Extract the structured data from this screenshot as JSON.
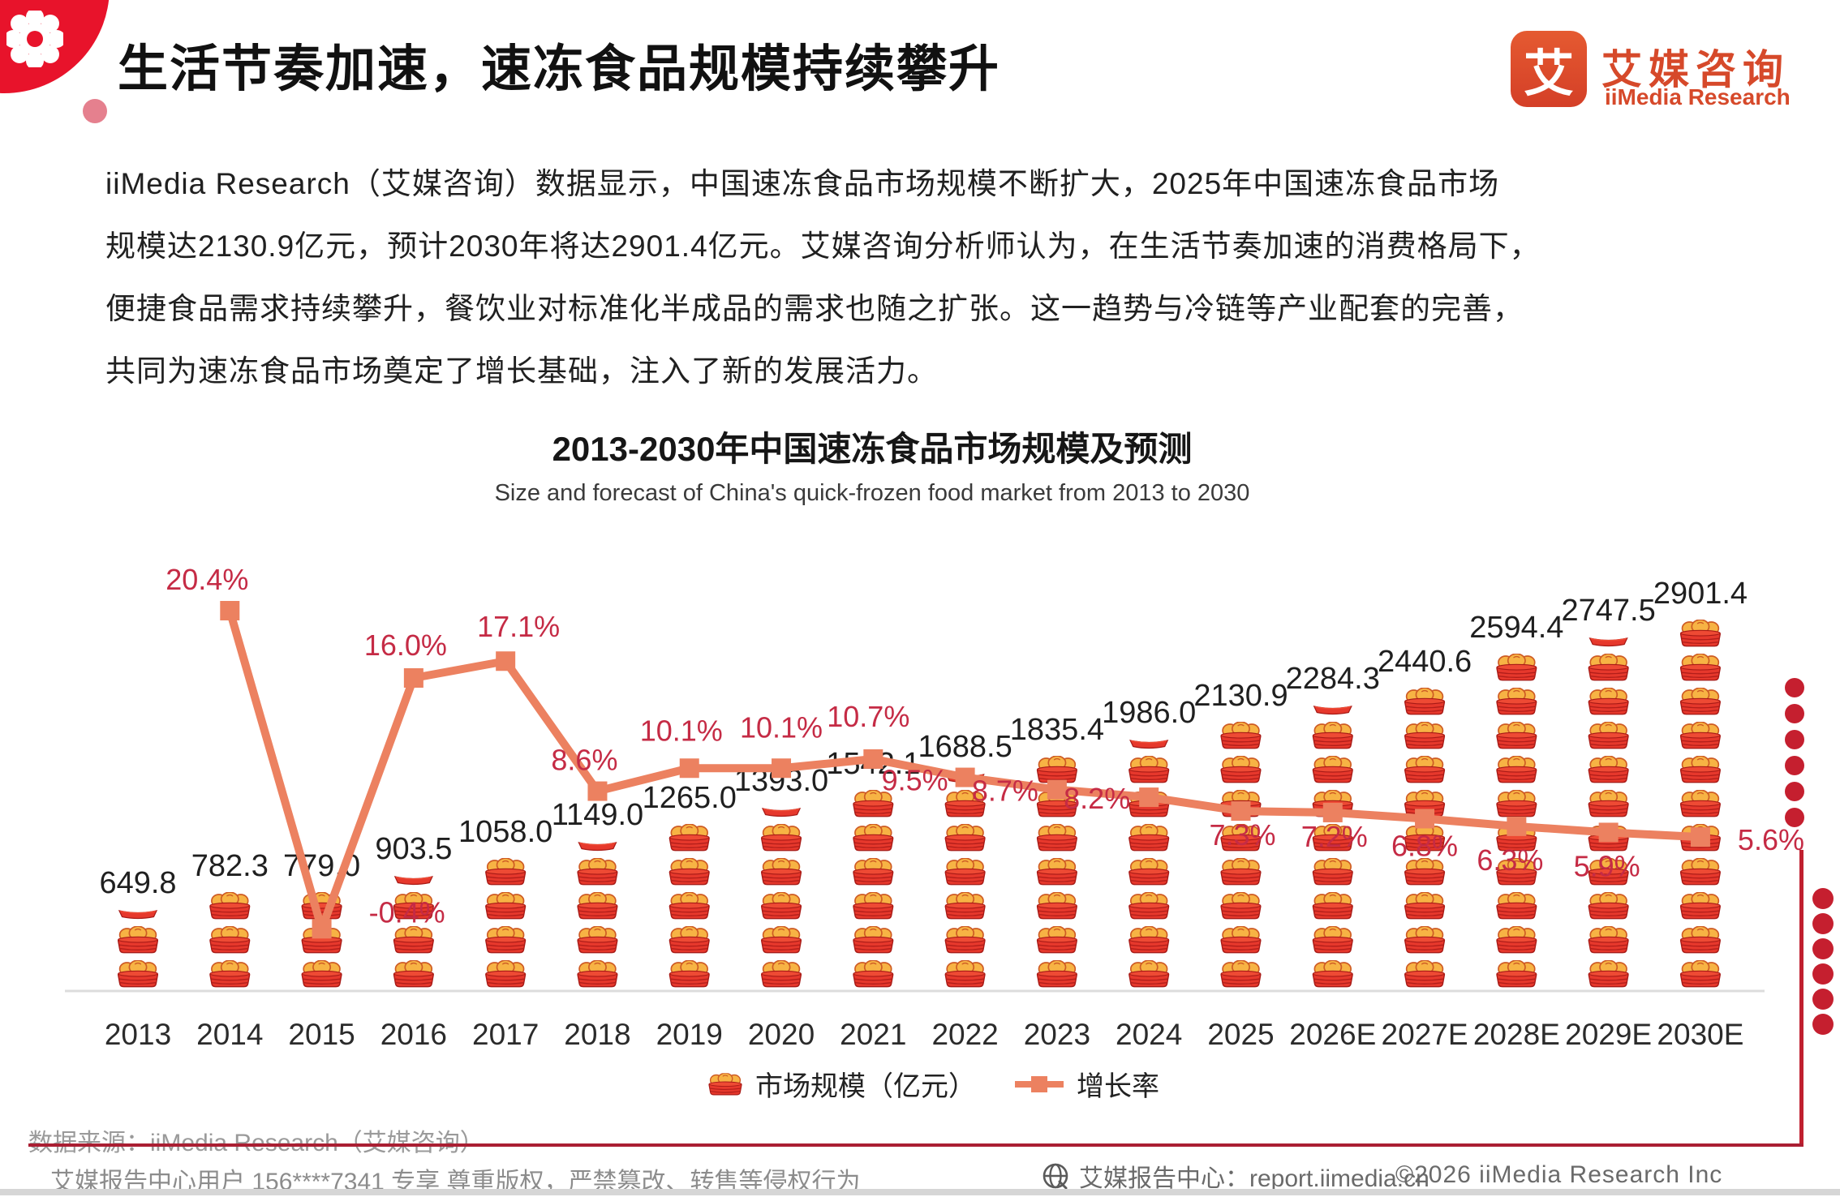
{
  "header": {
    "title": "生活节奏加速，速冻食品规模持续攀升",
    "logo": {
      "mark": "艾",
      "name_cn": "艾媒咨询",
      "name_en": "iiMedia Research"
    }
  },
  "intro": {
    "lines": [
      "iiMedia Research（艾媒咨询）数据显示，中国速冻食品市场规模不断扩大，2025年中国速冻食品市场",
      "规模达2130.9亿元，预计2030年将达2901.4亿元。艾媒咨询分析师认为，在生活节奏加速的消费格局下，",
      "便捷食品需求持续攀升，餐饮业对标准化半成品的需求也随之扩张。这一趋势与冷链等产业配套的完善，",
      "共同为速冻食品市场奠定了增长基础，注入了新的发展活力。"
    ]
  },
  "chart": {
    "title": "2013-2030年中国速冻食品市场规模及预测",
    "subtitle": "Size and forecast of China's quick-frozen food market from 2013 to 2030",
    "legend": [
      {
        "label": "市场规模（亿元）",
        "icon": "steamer-basket-icon"
      },
      {
        "label": "增长率",
        "icon": "line-marker-icon"
      }
    ]
  },
  "chart_data": {
    "type": "bar",
    "subtype": "pictorial-bar-with-line",
    "title": "2013-2030年中国速冻食品市场规模及预测",
    "subtitle": "Size and forecast of China's quick-frozen food market from 2013 to 2030",
    "categories": [
      "2013",
      "2014",
      "2015",
      "2016",
      "2017",
      "2018",
      "2019",
      "2020",
      "2021",
      "2022",
      "2023",
      "2024",
      "2025",
      "2026E",
      "2027E",
      "2028E",
      "2029E",
      "2030E"
    ],
    "series": [
      {
        "name": "市场规模（亿元）",
        "type": "bar",
        "values": [
          649.8,
          782.3,
          779.0,
          903.5,
          1058.0,
          1149.0,
          1265.0,
          1393.0,
          1542.1,
          1688.5,
          1835.4,
          1986.0,
          2130.9,
          2284.3,
          2440.6,
          2594.4,
          2747.5,
          2901.4
        ],
        "labels": [
          "649.8",
          "782.3",
          "779.0",
          "903.5",
          "1058.0",
          "1149.0",
          "1265.0",
          "1393.0",
          "1542.1",
          "1688.5",
          "1835.4",
          "1986.0",
          "2130.9",
          "2284.3",
          "2440.6",
          "2594.4",
          "2747.5",
          "2901.4"
        ]
      },
      {
        "name": "增长率",
        "type": "line",
        "unit": "%",
        "values": [
          null,
          20.4,
          -0.4,
          16.0,
          17.1,
          8.6,
          10.1,
          10.1,
          10.7,
          9.5,
          8.7,
          8.2,
          7.3,
          7.2,
          6.8,
          6.3,
          5.9,
          5.6
        ],
        "labels": [
          "",
          "20.4%",
          "-0.4%",
          "16.0%",
          "17.1%",
          "8.6%",
          "10.1%",
          "10.1%",
          "10.7%",
          "9.5%",
          "8.7%",
          "8.2%",
          "7.3%",
          "7.2%",
          "6.8%",
          "6.3%",
          "5.9%",
          "5.6%"
        ]
      }
    ],
    "legend_position": "bottom",
    "grid": false,
    "colors": {
      "basket_red": "#E6382C",
      "basket_dark": "#A81A16",
      "bun_orange": "#F7B344",
      "bun_outline": "#CE5B24",
      "growth_line": "#EC8160",
      "pct_label": "#C52B45",
      "value_label": "#1f1f1f",
      "axis_label": "#2b2b2b"
    }
  },
  "source": {
    "text": "数据来源：iiMedia Research（艾媒咨询）"
  },
  "footer": {
    "left": "艾媒报告中心用户 156****7341 专享 尊重版权，严禁篡改、转售等侵权行为",
    "center": "艾媒报告中心：report.iimedia.cn",
    "right": "©2026  iiMedia Research  Inc"
  }
}
